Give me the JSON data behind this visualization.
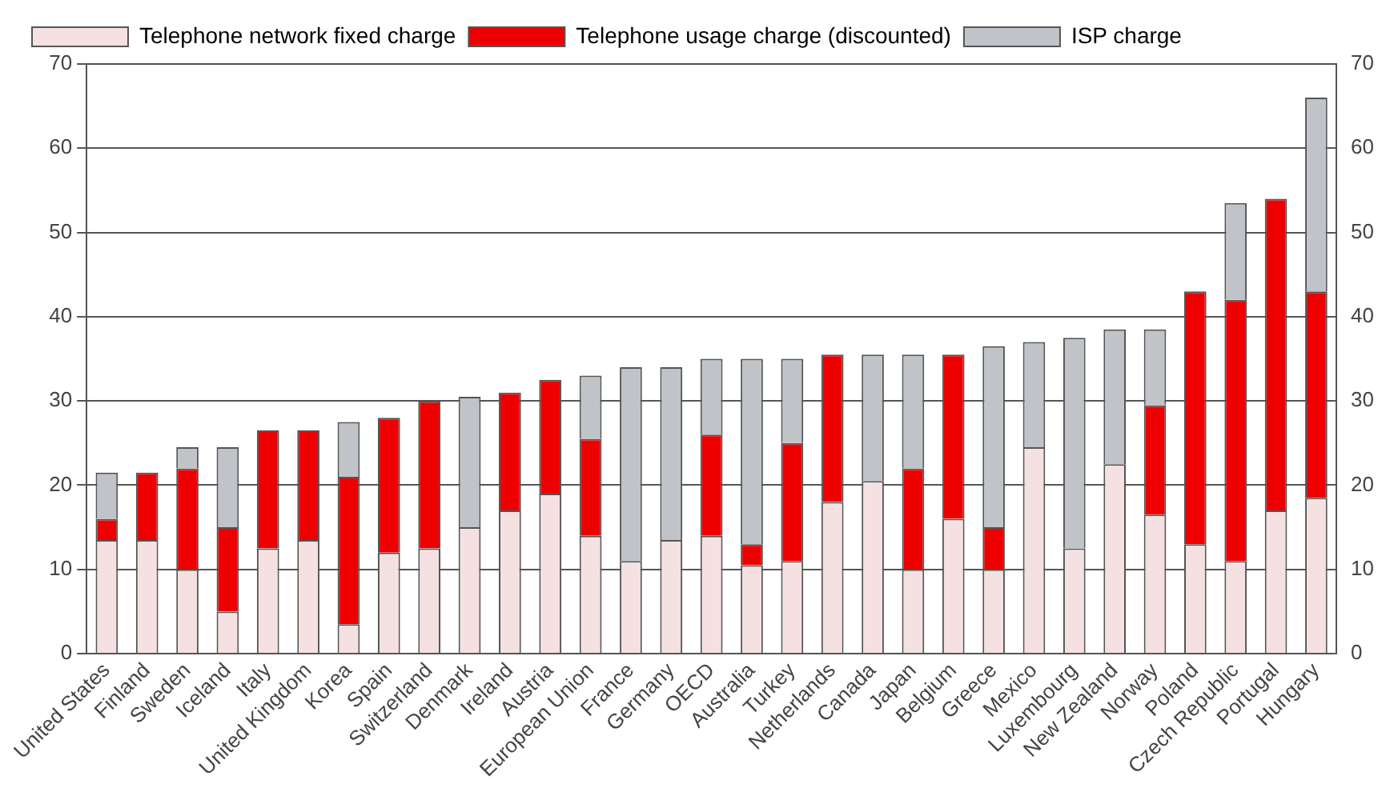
{
  "chart_data": {
    "type": "bar",
    "stacked": true,
    "categories": [
      "United States",
      "Finland",
      "Sweden",
      "Iceland",
      "Italy",
      "United Kingdom",
      "Korea",
      "Spain",
      "Switzerland",
      "Denmark",
      "Ireland",
      "Austria",
      "European Union",
      "France",
      "Germany",
      "OECD",
      "Australia",
      "Turkey",
      "Netherlands",
      "Canada",
      "Japan",
      "Belgium",
      "Greece",
      "Mexico",
      "Luxembourg",
      "New Zealand",
      "Norway",
      "Poland",
      "Czech Republic",
      "Portugal",
      "Hungary"
    ],
    "series": [
      {
        "name": "Telephone network fixed charge",
        "color": "#f5e1e1",
        "values": [
          13.5,
          13.5,
          10,
          5,
          12.5,
          13.5,
          3.5,
          12,
          12.5,
          15,
          17,
          19,
          14,
          11,
          13.5,
          14,
          10.5,
          11,
          18,
          20.5,
          10,
          16,
          10,
          24.5,
          12.5,
          22.5,
          16.5,
          13,
          11,
          17,
          18.5
        ]
      },
      {
        "name": "Telephone usage charge (discounted)",
        "color": "#ee0000",
        "values": [
          2.5,
          8,
          12,
          10,
          14,
          13,
          17.5,
          16,
          17.5,
          0,
          14,
          13.5,
          11.5,
          0,
          0,
          12,
          2.5,
          14,
          17.5,
          0,
          12,
          19.5,
          5,
          0,
          0,
          0,
          13,
          30,
          31,
          37,
          24.5
        ]
      },
      {
        "name": "ISP charge",
        "color": "#c0c4c8",
        "values": [
          5.5,
          0,
          2.5,
          9.5,
          0,
          0,
          6.5,
          0,
          0,
          15.5,
          0,
          0,
          7.5,
          23,
          20.5,
          9,
          22,
          10,
          0,
          15,
          13.5,
          0,
          21.5,
          12.5,
          25,
          16,
          9,
          0,
          11.5,
          0,
          23
        ]
      }
    ],
    "ylim": [
      0,
      70
    ],
    "yticks": [
      0,
      10,
      20,
      30,
      40,
      50,
      60,
      70
    ],
    "y2lim": [
      0,
      70
    ],
    "y2ticks": [
      0,
      10,
      20,
      30,
      40,
      50,
      60,
      70
    ],
    "grid": "y",
    "legend": "top"
  }
}
